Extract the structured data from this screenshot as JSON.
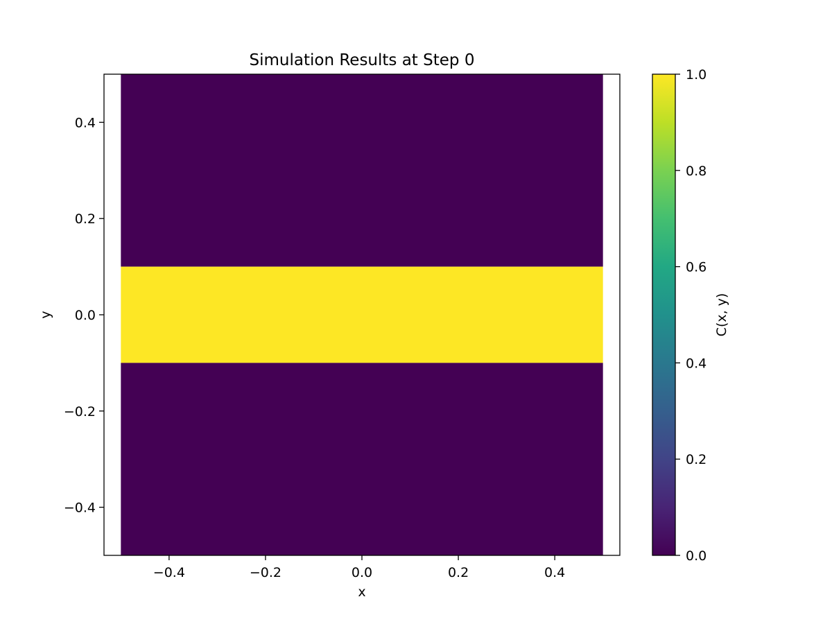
{
  "chart_data": {
    "type": "heatmap",
    "title": "Simulation Results at Step 0",
    "xlabel": "x",
    "ylabel": "y",
    "xlim": [
      -0.535,
      0.535
    ],
    "ylim": [
      -0.5,
      0.5
    ],
    "grid": false,
    "x_ticks": [
      -0.4,
      -0.2,
      0.0,
      0.2,
      0.4
    ],
    "x_tick_labels": [
      "−0.4",
      "−0.2",
      "0.0",
      "0.2",
      "0.4"
    ],
    "y_ticks": [
      -0.4,
      -0.2,
      0.0,
      0.2,
      0.4
    ],
    "y_tick_labels": [
      "−0.4",
      "−0.2",
      "0.0",
      "0.2",
      "0.4"
    ],
    "field_extent": {
      "x": [
        -0.5,
        0.5
      ],
      "y": [
        -0.5,
        0.5
      ]
    },
    "bands": [
      {
        "y_min": 0.1,
        "y_max": 0.5,
        "value": 0.0
      },
      {
        "y_min": -0.1,
        "y_max": 0.1,
        "value": 1.0
      },
      {
        "y_min": -0.5,
        "y_max": -0.1,
        "value": 0.0
      }
    ],
    "colorbar": {
      "label": "C(x, y)",
      "colormap": "viridis",
      "range": [
        0.0,
        1.0
      ],
      "ticks": [
        0.0,
        0.2,
        0.4,
        0.6,
        0.8,
        1.0
      ],
      "tick_labels": [
        "0.0",
        "0.2",
        "0.4",
        "0.6",
        "0.8",
        "1.0"
      ]
    },
    "colors": {
      "low": "#440154",
      "high": "#fde725"
    }
  }
}
